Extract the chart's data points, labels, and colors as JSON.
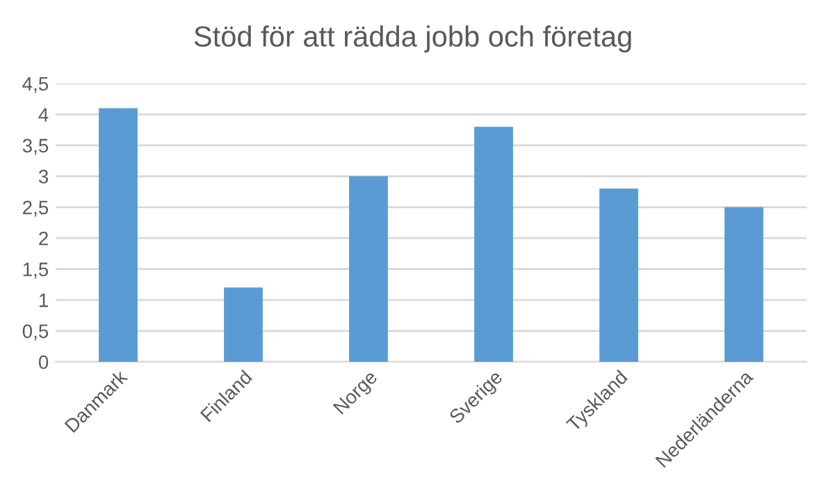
{
  "chart_data": {
    "type": "bar",
    "title": "Stöd för att rädda jobb och företag",
    "categories": [
      "Danmark",
      "Finland",
      "Norge",
      "Sverige",
      "Tyskland",
      "Nederländerna"
    ],
    "values": [
      4.1,
      1.2,
      3.0,
      3.8,
      2.8,
      2.5
    ],
    "color": "#5b9bd5",
    "ylim": [
      0,
      4.5
    ],
    "yticks": [
      0,
      {
        "value": 0.5,
        "label": "0,5"
      },
      1,
      {
        "value": 1.5,
        "label": "1,5"
      },
      2,
      {
        "value": 2.5,
        "label": "2,5"
      },
      3,
      {
        "value": 3.5,
        "label": "3,5"
      },
      4,
      {
        "value": 4.5,
        "label": "4,5"
      }
    ],
    "grid": "y",
    "legend": false
  }
}
